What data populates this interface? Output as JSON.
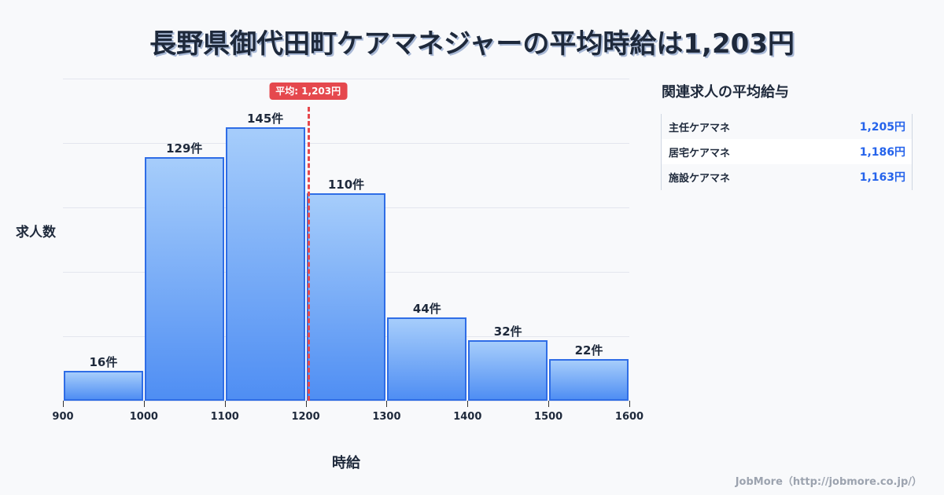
{
  "title": "長野県御代田町ケアマネジャーの平均時給は1,203円",
  "chart_data": {
    "type": "bar",
    "subtype": "histogram",
    "title": "長野県御代田町ケアマネジャーの平均時給は1,203円",
    "xlabel": "時給",
    "ylabel": "求人数",
    "bins": [
      [
        900,
        1000
      ],
      [
        1000,
        1100
      ],
      [
        1100,
        1200
      ],
      [
        1200,
        1300
      ],
      [
        1300,
        1400
      ],
      [
        1400,
        1500
      ],
      [
        1500,
        1600
      ]
    ],
    "categories": [
      "900-1000",
      "1000-1100",
      "1100-1200",
      "1200-1300",
      "1300-1400",
      "1400-1500",
      "1500-1600"
    ],
    "values": [
      16,
      129,
      145,
      110,
      44,
      32,
      22
    ],
    "value_labels": [
      "16件",
      "129件",
      "145件",
      "110件",
      "44件",
      "32件",
      "22件"
    ],
    "x_ticks": [
      "900",
      "1000",
      "1100",
      "1200",
      "1300",
      "1400",
      "1500",
      "1600"
    ],
    "xlim": [
      900,
      1600
    ],
    "ylim": [
      0,
      171
    ],
    "grid": true,
    "annotations": [
      {
        "type": "vline",
        "x": 1203,
        "label": "平均: 1,203円",
        "color": "#e5484d",
        "style": "dashed"
      }
    ],
    "colors": {
      "bar_fill_top": "#a6cdfb",
      "bar_fill_bottom": "#4f8ef3",
      "bar_border": "#2f6de6"
    }
  },
  "average_badge": "平均: 1,203円",
  "side_panel": {
    "title": "関連求人の平均給与",
    "rows": [
      {
        "name": "主任ケアマネ",
        "value": "1,205円"
      },
      {
        "name": "居宅ケアマネ",
        "value": "1,186円"
      },
      {
        "name": "施設ケアマネ",
        "value": "1,163円"
      }
    ]
  },
  "footer": "JobMore（http://jobmore.co.jp/）"
}
